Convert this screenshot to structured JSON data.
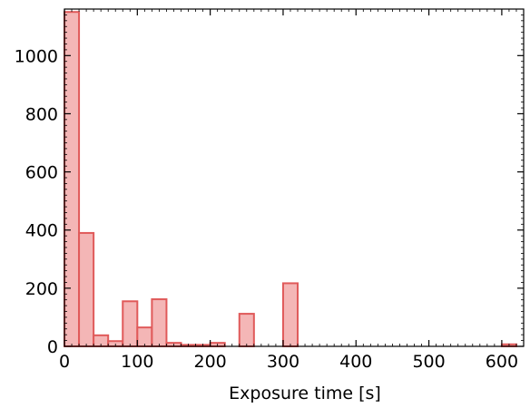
{
  "chart_data": {
    "type": "bar",
    "title": "",
    "xlabel": "Exposure time [s]",
    "ylabel": "",
    "xlim": [
      0,
      630
    ],
    "ylim": [
      0,
      1160
    ],
    "xticks": [
      0,
      100,
      200,
      300,
      400,
      500,
      600
    ],
    "yticks": [
      0,
      200,
      400,
      600,
      800,
      1000
    ],
    "grid": false,
    "colors": {
      "fill": "#f4b6b6",
      "edge": "#e05a5a"
    },
    "bins": [
      {
        "x0": 0,
        "x1": 20,
        "value": 1150
      },
      {
        "x0": 20,
        "x1": 40,
        "value": 390
      },
      {
        "x0": 40,
        "x1": 60,
        "value": 38
      },
      {
        "x0": 60,
        "x1": 80,
        "value": 18
      },
      {
        "x0": 80,
        "x1": 100,
        "value": 155
      },
      {
        "x0": 100,
        "x1": 120,
        "value": 65
      },
      {
        "x0": 120,
        "x1": 140,
        "value": 162
      },
      {
        "x0": 140,
        "x1": 160,
        "value": 12
      },
      {
        "x0": 160,
        "x1": 180,
        "value": 5
      },
      {
        "x0": 180,
        "x1": 200,
        "value": 5
      },
      {
        "x0": 200,
        "x1": 220,
        "value": 12
      },
      {
        "x0": 240,
        "x1": 260,
        "value": 112
      },
      {
        "x0": 300,
        "x1": 320,
        "value": 217
      },
      {
        "x0": 600,
        "x1": 620,
        "value": 7
      }
    ]
  }
}
